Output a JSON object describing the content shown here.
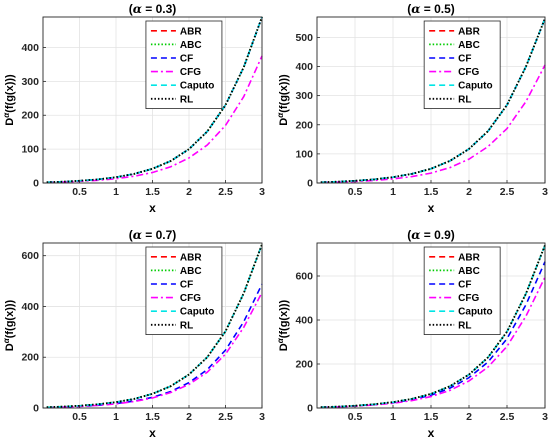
{
  "chart_data": [
    {
      "type": "line",
      "title_prefix": "(",
      "title_alpha": "α",
      "title_suffix": " = 0.3)",
      "xlabel": "x",
      "ylabel_prefix": "D",
      "ylabel_sup": "α",
      "ylabel_suffix": "(f(g(x)))",
      "xlim": [
        0,
        3
      ],
      "ylim": [
        0,
        490
      ],
      "xticks": [
        0.5,
        1,
        1.5,
        2,
        2.5,
        3
      ],
      "xtick_labels": [
        "0.5",
        "1",
        "1.5",
        "2",
        "2.5",
        "3"
      ],
      "yticks": [
        0,
        100,
        200,
        300,
        400
      ],
      "ytick_labels": [
        "0",
        "100",
        "200",
        "300",
        "400"
      ],
      "grid": true,
      "legend": "top-right",
      "x": [
        0.05,
        0.25,
        0.5,
        0.75,
        1,
        1.25,
        1.5,
        1.75,
        2,
        2.25,
        2.5,
        2.75,
        3
      ],
      "series": [
        {
          "name": "ABR",
          "color": "#ff0000",
          "dash": "dash",
          "values": [
            2,
            3.5,
            6.5,
            10.5,
            17,
            27,
            42,
            65,
            100,
            152,
            230,
            342,
            490
          ]
        },
        {
          "name": "ABC",
          "color": "#00cc00",
          "dash": "dot",
          "values": [
            2,
            3.5,
            6.5,
            10.5,
            17,
            27,
            42,
            65,
            100,
            152,
            230,
            342,
            490
          ]
        },
        {
          "name": "CF",
          "color": "#0000ff",
          "dash": "dash",
          "values": [
            2,
            3.5,
            6.5,
            10.5,
            17,
            27,
            42,
            65,
            100,
            152,
            230,
            342,
            490
          ]
        },
        {
          "name": "CFG",
          "color": "#ff00ff",
          "dash": "dashdot",
          "values": [
            1.5,
            2.7,
            4.8,
            8,
            12.7,
            20,
            31,
            48,
            74,
            112,
            170,
            255,
            375
          ]
        },
        {
          "name": "Caputo",
          "color": "#00e5e5",
          "dash": "dash",
          "values": [
            2,
            3.5,
            6.5,
            10.5,
            17,
            27,
            42,
            65,
            100,
            152,
            230,
            342,
            490
          ]
        },
        {
          "name": "RL",
          "color": "#000000",
          "dash": "dot",
          "values": [
            2,
            3.5,
            6.5,
            10.5,
            17,
            27,
            42,
            65,
            100,
            152,
            230,
            342,
            490
          ]
        }
      ]
    },
    {
      "type": "line",
      "title_prefix": "(",
      "title_alpha": "α",
      "title_suffix": " = 0.5)",
      "xlabel": "x",
      "ylabel_prefix": "D",
      "ylabel_sup": "α",
      "ylabel_suffix": "(f(g(x)))",
      "xlim": [
        0,
        3
      ],
      "ylim": [
        0,
        570
      ],
      "xticks": [
        0.5,
        1,
        1.5,
        2,
        2.5,
        3
      ],
      "xtick_labels": [
        "0.5",
        "1",
        "1.5",
        "2",
        "2.5",
        "3"
      ],
      "yticks": [
        0,
        100,
        200,
        300,
        400,
        500
      ],
      "ytick_labels": [
        "0",
        "100",
        "200",
        "300",
        "400",
        "500"
      ],
      "grid": true,
      "legend": "top-right",
      "x": [
        0.05,
        0.25,
        0.5,
        0.75,
        1,
        1.25,
        1.5,
        1.75,
        2,
        2.25,
        2.5,
        2.75,
        3
      ],
      "series": [
        {
          "name": "ABR",
          "color": "#ff0000",
          "dash": "dash",
          "values": [
            2.5,
            4.2,
            7.5,
            12.3,
            20,
            31.5,
            49,
            76,
            117,
            178,
            268,
            400,
            565
          ]
        },
        {
          "name": "ABC",
          "color": "#00cc00",
          "dash": "dot",
          "values": [
            2.5,
            4.2,
            7.5,
            12.3,
            20,
            31.5,
            49,
            76,
            117,
            178,
            268,
            400,
            565
          ]
        },
        {
          "name": "CF",
          "color": "#0000ff",
          "dash": "dash",
          "values": [
            2.5,
            4.2,
            7.5,
            12.3,
            20,
            31.5,
            49,
            76,
            117,
            178,
            268,
            400,
            565
          ]
        },
        {
          "name": "CFG",
          "color": "#ff00ff",
          "dash": "dashdot",
          "values": [
            1.7,
            2.9,
            5.2,
            8.6,
            14,
            22,
            34,
            53,
            82,
            125,
            187,
            280,
            405
          ]
        },
        {
          "name": "Caputo",
          "color": "#00e5e5",
          "dash": "dash",
          "values": [
            2.5,
            4.2,
            7.5,
            12.3,
            20,
            31.5,
            49,
            76,
            117,
            178,
            268,
            400,
            565
          ]
        },
        {
          "name": "RL",
          "color": "#000000",
          "dash": "dot",
          "values": [
            2.5,
            4.2,
            7.5,
            12.3,
            20,
            31.5,
            49,
            76,
            117,
            178,
            268,
            400,
            565
          ]
        }
      ]
    },
    {
      "type": "line",
      "title_prefix": "(",
      "title_alpha": "α",
      "title_suffix": " = 0.7)",
      "xlabel": "x",
      "ylabel_prefix": "D",
      "ylabel_sup": "α",
      "ylabel_suffix": "(f(g(x)))",
      "xlim": [
        0,
        3
      ],
      "ylim": [
        0,
        650
      ],
      "xticks": [
        0.5,
        1,
        1.5,
        2,
        2.5,
        3
      ],
      "xtick_labels": [
        "0.5",
        "1",
        "1.5",
        "2",
        "2.5",
        "3"
      ],
      "yticks": [
        0,
        200,
        400,
        600
      ],
      "ytick_labels": [
        "0",
        "200",
        "400",
        "600"
      ],
      "grid": true,
      "legend": "top-right",
      "x": [
        0.05,
        0.25,
        0.5,
        0.75,
        1,
        1.25,
        1.5,
        1.75,
        2,
        2.25,
        2.5,
        2.75,
        3
      ],
      "series": [
        {
          "name": "ABR",
          "color": "#ff0000",
          "dash": "dash",
          "values": [
            3,
            5,
            8.8,
            14.5,
            23,
            36,
            56,
            86,
            132,
            200,
            302,
            452,
            645
          ]
        },
        {
          "name": "ABC",
          "color": "#00cc00",
          "dash": "dot",
          "values": [
            3,
            5,
            8.8,
            14.5,
            23,
            36,
            56,
            86,
            132,
            200,
            302,
            452,
            645
          ]
        },
        {
          "name": "CF",
          "color": "#0000ff",
          "dash": "dash",
          "values": [
            2.2,
            3.8,
            6.6,
            10.9,
            17.4,
            27.3,
            42,
            65,
            100,
            151,
            228,
            340,
            488
          ]
        },
        {
          "name": "CFG",
          "color": "#ff00ff",
          "dash": "dashdot",
          "values": [
            2,
            3.5,
            6.2,
            10.2,
            16.3,
            25.5,
            39.5,
            61,
            93,
            141,
            212,
            318,
            455
          ]
        },
        {
          "name": "Caputo",
          "color": "#00e5e5",
          "dash": "dash",
          "values": [
            3,
            5,
            8.8,
            14.5,
            23,
            36,
            56,
            86,
            132,
            200,
            302,
            452,
            645
          ]
        },
        {
          "name": "RL",
          "color": "#000000",
          "dash": "dot",
          "values": [
            3,
            5,
            8.8,
            14.5,
            23,
            36,
            56,
            86,
            132,
            200,
            302,
            452,
            645
          ]
        }
      ]
    },
    {
      "type": "line",
      "title_prefix": "(",
      "title_alpha": "α",
      "title_suffix": " = 0.9)",
      "xlabel": "x",
      "ylabel_prefix": "D",
      "ylabel_sup": "α",
      "ylabel_suffix": "(f(g(x)))",
      "xlim": [
        0,
        3
      ],
      "ylim": [
        0,
        750
      ],
      "xticks": [
        0.5,
        1,
        1.5,
        2,
        2.5,
        3
      ],
      "xtick_labels": [
        "0.5",
        "1",
        "1.5",
        "2",
        "2.5",
        "3"
      ],
      "yticks": [
        0,
        200,
        400,
        600
      ],
      "ytick_labels": [
        "0",
        "200",
        "400",
        "600"
      ],
      "grid": true,
      "legend": "top-right",
      "x": [
        0.05,
        0.25,
        0.5,
        0.75,
        1,
        1.25,
        1.5,
        1.75,
        2,
        2.25,
        2.5,
        2.75,
        3
      ],
      "series": [
        {
          "name": "ABR",
          "color": "#ff0000",
          "dash": "dash",
          "values": [
            3.5,
            5.8,
            10.2,
            16.8,
            26.5,
            41.5,
            64,
            99,
            152,
            230,
            347,
            520,
            740
          ]
        },
        {
          "name": "ABC",
          "color": "#00cc00",
          "dash": "dot",
          "values": [
            3.5,
            5.8,
            10.2,
            16.8,
            26.5,
            41.5,
            64,
            99,
            152,
            230,
            347,
            520,
            740
          ]
        },
        {
          "name": "CF",
          "color": "#0000ff",
          "dash": "dash",
          "values": [
            3.2,
            5.3,
            9.3,
            15.3,
            24,
            37.8,
            58,
            90,
            138,
            209,
            315,
            470,
            665
          ]
        },
        {
          "name": "CFG",
          "color": "#ff00ff",
          "dash": "dashdot",
          "values": [
            2.8,
            4.7,
            8.3,
            13.7,
            21.5,
            33.8,
            52,
            80,
            123,
            186,
            280,
            418,
            595
          ]
        },
        {
          "name": "Caputo",
          "color": "#00e5e5",
          "dash": "dash",
          "values": [
            3.5,
            5.8,
            10.2,
            16.8,
            26.5,
            41.5,
            64,
            99,
            152,
            230,
            347,
            520,
            740
          ]
        },
        {
          "name": "RL",
          "color": "#000000",
          "dash": "dot",
          "values": [
            3.5,
            5.8,
            10.2,
            16.8,
            26.5,
            41.5,
            64,
            99,
            152,
            230,
            347,
            520,
            740
          ]
        }
      ]
    }
  ]
}
